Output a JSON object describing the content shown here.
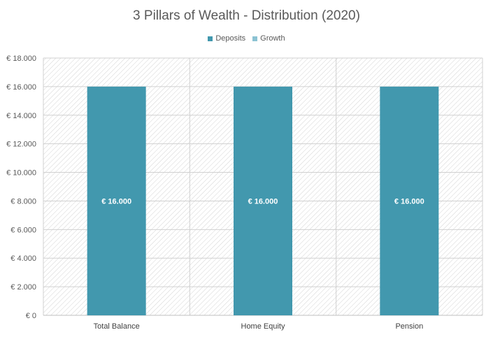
{
  "chart_data": {
    "type": "bar",
    "title": "3 Pillars of Wealth  - Distribution  (2020)",
    "categories": [
      "Total Balance",
      "Home Equity",
      "Pension"
    ],
    "series": [
      {
        "name": "Deposits",
        "values": [
          16000,
          16000,
          16000
        ],
        "color": "#4298AE"
      },
      {
        "name": "Growth",
        "values": [
          0,
          0,
          0
        ],
        "color": "#8CC3D3"
      }
    ],
    "data_labels": [
      "€ 16.000",
      "€ 16.000",
      "€ 16.000"
    ],
    "ylim": [
      0,
      18000
    ],
    "y_ticks": [
      {
        "value": 0,
        "label": "€ 0"
      },
      {
        "value": 2000,
        "label": "€ 2.000"
      },
      {
        "value": 4000,
        "label": "€ 4.000"
      },
      {
        "value": 6000,
        "label": "€ 6.000"
      },
      {
        "value": 8000,
        "label": "€ 8.000"
      },
      {
        "value": 10000,
        "label": "€ 10.000"
      },
      {
        "value": 12000,
        "label": "€ 12.000"
      },
      {
        "value": 14000,
        "label": "€ 14.000"
      },
      {
        "value": 16000,
        "label": "€ 16.000"
      },
      {
        "value": 18000,
        "label": "€ 18.000"
      }
    ],
    "stacked": true,
    "grid": true,
    "legend_position": "top",
    "plot_background": "hatched"
  }
}
